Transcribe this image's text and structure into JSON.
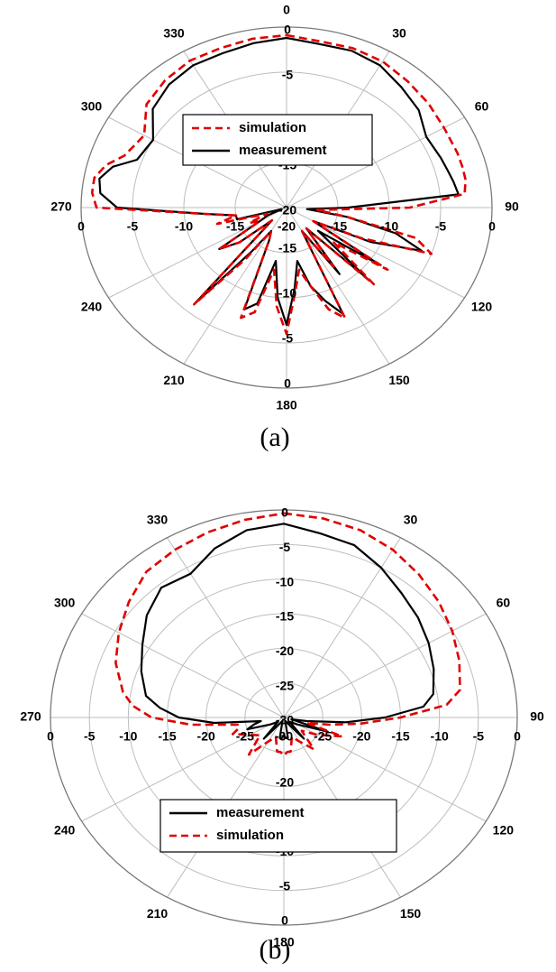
{
  "colors": {
    "measurement": "#000000",
    "simulation": "#e00000",
    "grid": "#bdbdbd",
    "frame": "#7a7a7a"
  },
  "chart_data": [
    {
      "type": "line",
      "polar": true,
      "caption": "(a)",
      "angular_ticks": [
        "0",
        "30",
        "60",
        "90",
        "120",
        "150",
        "180",
        "210",
        "240",
        "270",
        "300",
        "330"
      ],
      "radial_ticks_upper": [
        "0",
        "-5",
        "-10",
        "-15",
        "-20"
      ],
      "radial_ticks_lower": [
        "0",
        "-5",
        "-10",
        "-15",
        "-20"
      ],
      "radial_ticks_horizontal": [
        "0",
        "-5",
        "-10",
        "-15",
        "-20",
        "-15",
        "-10",
        "-5",
        "0"
      ],
      "rlim": [
        -20,
        0
      ],
      "legend": {
        "placement": "upper-center",
        "entries": [
          "simulation",
          "measurement"
        ]
      },
      "series": [
        {
          "name": "measurement",
          "style": "solid",
          "theta": [
            0,
            10,
            20,
            30,
            40,
            50,
            60,
            70,
            75,
            80,
            85,
            90,
            95,
            100,
            105,
            110,
            115,
            120,
            125,
            130,
            135,
            140,
            145,
            150,
            155,
            160,
            165,
            170,
            175,
            180,
            185,
            190,
            195,
            200,
            205,
            210,
            215,
            220,
            225,
            230,
            235,
            240,
            245,
            250,
            255,
            260,
            265,
            270,
            275,
            280,
            285,
            290,
            300,
            310,
            320,
            330,
            340,
            350,
            360
          ],
          "r": [
            -1.2,
            -1.6,
            -1.5,
            -1.8,
            -2.6,
            -3.2,
            -4.3,
            -4.0,
            -3.8,
            -3.5,
            -3.2,
            -14,
            -18,
            -14,
            -9,
            -6,
            -11,
            -17,
            -9,
            -16,
            -9,
            -17,
            -11,
            -17,
            -7,
            -9,
            -11,
            -14,
            -11,
            -7,
            -10,
            -14,
            -9,
            -8,
            -16,
            -17,
            -14,
            -6,
            -18,
            -14,
            -12,
            -17,
            -18,
            -19.5,
            -15,
            -15,
            -12,
            -3.5,
            -1.8,
            -1.5,
            -2.5,
            -4.5,
            -5.0,
            -3.0,
            -2.2,
            -1.8,
            -1.8,
            -1.5,
            -1.2
          ]
        },
        {
          "name": "simulation",
          "style": "dashed",
          "theta": [
            0,
            10,
            20,
            30,
            40,
            50,
            60,
            70,
            75,
            80,
            85,
            90,
            95,
            100,
            105,
            110,
            115,
            120,
            125,
            130,
            135,
            140,
            145,
            150,
            155,
            160,
            165,
            170,
            175,
            180,
            185,
            190,
            195,
            200,
            205,
            210,
            215,
            220,
            225,
            230,
            235,
            240,
            245,
            250,
            255,
            260,
            265,
            270,
            275,
            280,
            285,
            290,
            300,
            310,
            320,
            330,
            340,
            350,
            360
          ],
          "r": [
            -0.9,
            -1.3,
            -1.2,
            -1.3,
            -1.7,
            -2.0,
            -2.3,
            -2.3,
            -2.3,
            -2.3,
            -2.6,
            -8,
            -17,
            -14,
            -7,
            -5,
            -12,
            -17,
            -8,
            -14,
            -8,
            -17,
            -12,
            -17,
            -6.5,
            -8,
            -11,
            -13,
            -10.5,
            -6,
            -9,
            -13,
            -8,
            -7,
            -16,
            -17,
            -13,
            -6,
            -18,
            -14,
            -12,
            -17,
            -16,
            -18,
            -13,
            -15,
            -12,
            -1.5,
            -1.0,
            -1.0,
            -1.8,
            -3.2,
            -4.0,
            -2.2,
            -1.6,
            -1.2,
            -1.2,
            -1.0,
            -0.9
          ]
        }
      ]
    },
    {
      "type": "line",
      "polar": true,
      "caption": "(b)",
      "angular_ticks": [
        "0",
        "30",
        "60",
        "90",
        "120",
        "150",
        "180",
        "210",
        "240",
        "270",
        "300",
        "330"
      ],
      "radial_ticks_upper": [
        "0",
        "-5",
        "-10",
        "-15",
        "-20",
        "-25",
        "-30"
      ],
      "radial_ticks_lower": [
        "-20",
        "-15",
        "-10",
        "-5",
        "0"
      ],
      "radial_ticks_horizontal": [
        "0",
        "-5",
        "-10",
        "-15",
        "-20",
        "-25",
        "-30",
        "-25",
        "-20",
        "-15",
        "-10",
        "-5",
        "0"
      ],
      "rlim": [
        -30,
        0
      ],
      "legend": {
        "placement": "lower-center",
        "entries": [
          "measurement",
          "simulation"
        ]
      },
      "series": [
        {
          "name": "measurement",
          "style": "solid",
          "theta": [
            0,
            10,
            20,
            30,
            40,
            50,
            60,
            70,
            80,
            85,
            90,
            95,
            100,
            105,
            110,
            120,
            130,
            140,
            150,
            160,
            170,
            175,
            180,
            185,
            190,
            200,
            210,
            220,
            230,
            240,
            250,
            255,
            260,
            265,
            270,
            275,
            280,
            290,
            300,
            310,
            320,
            330,
            340,
            350,
            360
          ],
          "r": [
            -2.0,
            -3.0,
            -3.5,
            -5.0,
            -6.5,
            -7.5,
            -8.5,
            -9.5,
            -10.5,
            -12.0,
            -17.0,
            -22.0,
            -27.0,
            -29.0,
            -24.0,
            -28.0,
            -29.0,
            -26.0,
            -29.0,
            -29.5,
            -27.0,
            -27.0,
            -27.5,
            -27.0,
            -27.0,
            -29.5,
            -29.0,
            -26.0,
            -29.0,
            -28.0,
            -25.0,
            -26.0,
            -27.0,
            -21.0,
            -16.5,
            -14.0,
            -12.0,
            -10.5,
            -9.0,
            -7.0,
            -5.5,
            -6.0,
            -4.0,
            -2.5,
            -2.0
          ]
        },
        {
          "name": "simulation",
          "style": "dashed",
          "theta": [
            0,
            10,
            20,
            30,
            40,
            50,
            60,
            70,
            80,
            85,
            90,
            95,
            100,
            105,
            110,
            120,
            130,
            140,
            150,
            160,
            170,
            175,
            180,
            185,
            190,
            200,
            210,
            220,
            230,
            240,
            250,
            255,
            260,
            265,
            270,
            275,
            280,
            290,
            300,
            310,
            320,
            330,
            340,
            350,
            360
          ],
          "r": [
            -0.5,
            -0.8,
            -1.2,
            -2.0,
            -3.0,
            -4.0,
            -5.0,
            -6.0,
            -7.0,
            -9.0,
            -15.0,
            -20.0,
            -24.0,
            -27.0,
            -22.0,
            -25.0,
            -27.0,
            -24.0,
            -26.0,
            -27.0,
            -25.0,
            -25.0,
            -24.5,
            -25.0,
            -25.0,
            -27.0,
            -26.0,
            -23.0,
            -26.0,
            -25.0,
            -23.0,
            -24.0,
            -24.0,
            -18.0,
            -13.0,
            -10.5,
            -9.0,
            -7.0,
            -5.5,
            -4.0,
            -2.5,
            -2.0,
            -1.5,
            -1.0,
            -0.5
          ]
        }
      ]
    }
  ]
}
